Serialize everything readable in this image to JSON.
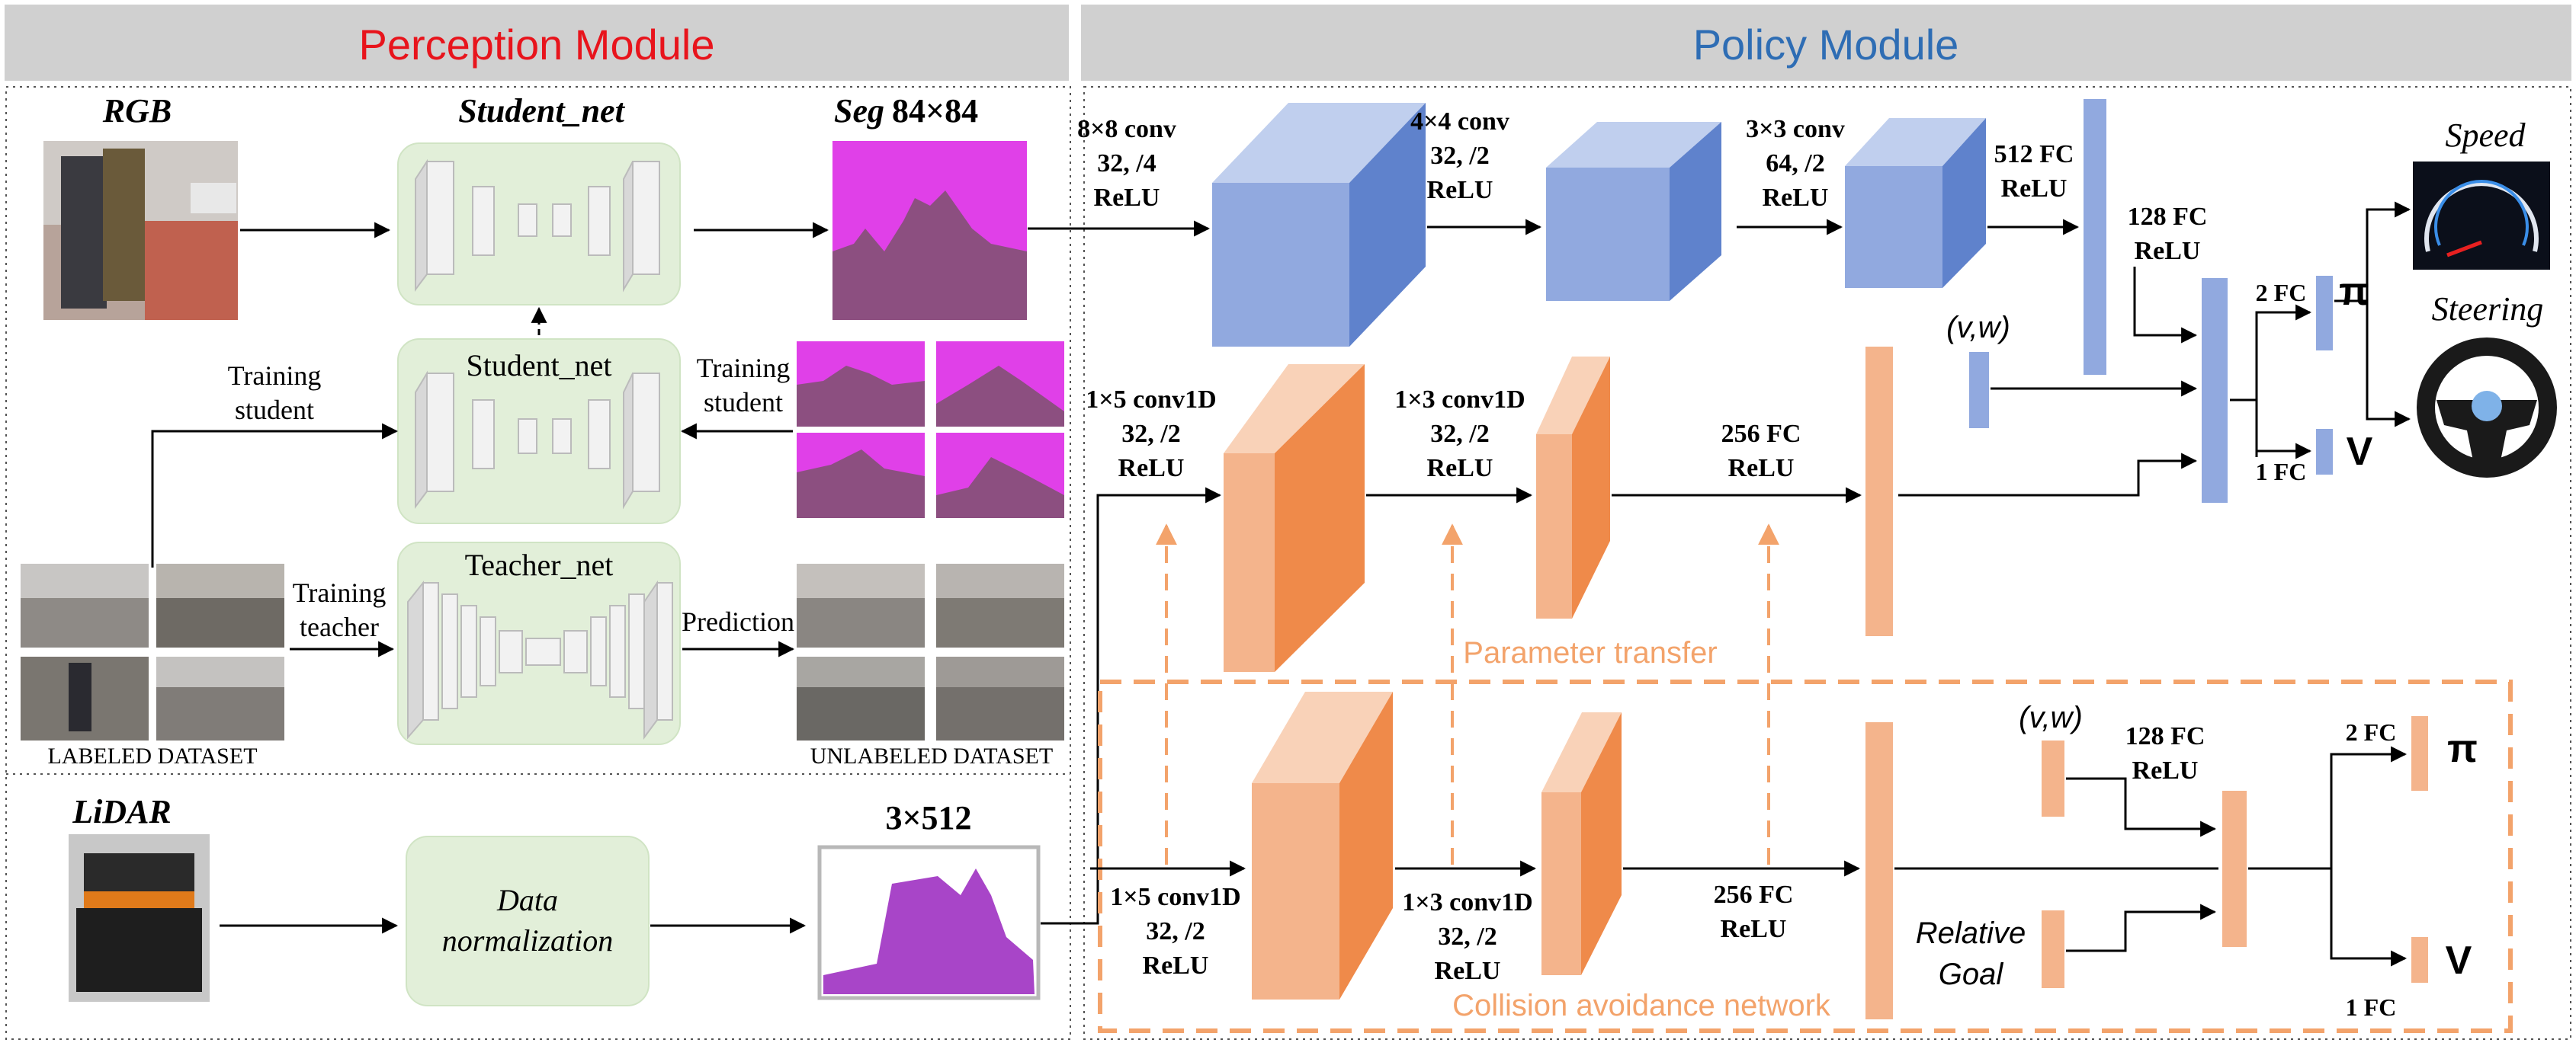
{
  "headers": {
    "perception": "Perception Module",
    "policy": "Policy Module"
  },
  "perception": {
    "rgb_label": "RGB",
    "student_net_top": "Student_net",
    "seg_label_a": "Seg",
    "seg_label_b": "84×84",
    "student_net_mid": "Student_net",
    "teacher_net": "Teacher_net",
    "training_student_left": [
      "Training",
      "student"
    ],
    "training_student_right": [
      "Training",
      "student"
    ],
    "training_teacher": [
      "Training",
      "teacher"
    ],
    "prediction": "Prediction",
    "labeled_dataset": "LABELED DATASET",
    "unlabeled_dataset": "UNLABELED DATASET",
    "lidar_label": "LiDAR",
    "data_norm": [
      "Data",
      "normalization"
    ],
    "lidar_dim": "3×512"
  },
  "policy": {
    "conv1": [
      "8×8 conv",
      "32, /4",
      "ReLU"
    ],
    "conv2": [
      "4×4 conv",
      "32, /2",
      "ReLU"
    ],
    "conv3": [
      "3×3 conv",
      "64, /2",
      "ReLU"
    ],
    "fc512": [
      "512 FC",
      "ReLU"
    ],
    "fc128": [
      "128 FC",
      "ReLU"
    ],
    "vw_top": "(v,w)",
    "fc2_top": "2 FC",
    "fc1_top": "1 FC",
    "pi_top": "π",
    "v_top": "V",
    "speed": "Speed",
    "steering": "Steering",
    "conv1d_a": [
      "1×5 conv1D",
      "32,  /2",
      "ReLU"
    ],
    "conv1d_b": [
      "1×3 conv1D",
      "32, /2",
      "ReLU"
    ],
    "fc256_mid": [
      "256 FC",
      "ReLU"
    ],
    "param_transfer": "Parameter transfer",
    "conv1d_c": [
      "1×5 conv1D",
      "32, /2",
      "ReLU"
    ],
    "conv1d_d": [
      "1×3 conv1D",
      "32, /2",
      "ReLU"
    ],
    "fc256_bot": [
      "256 FC",
      "ReLU"
    ],
    "vw_bot": "(v,w)",
    "fc128_bot": [
      "128 FC",
      "ReLU"
    ],
    "relative_goal": [
      "Relative",
      "Goal"
    ],
    "fc2_bot": "2 FC",
    "fc1_bot": "1 FC",
    "pi_bot": "π",
    "v_bot": "V",
    "collision_net": "Collision avoidance network"
  },
  "colors": {
    "header_bg": "#d0d0d0",
    "perception_title": "#e8141c",
    "policy_title": "#2e6db4",
    "blue_front": "#91a9df",
    "blue_side": "#5f82cc",
    "blue_top": "#c0cfee",
    "orange_front": "#f4b48c",
    "orange_side": "#ef8a4a",
    "orange_top": "#f9d2b8",
    "orange_dash": "#f3a36b",
    "green_box": "#e2efd9",
    "magenta": "#e040e8",
    "purple_seg": "#8c4f80",
    "lidar_purple": "#a845c8"
  }
}
